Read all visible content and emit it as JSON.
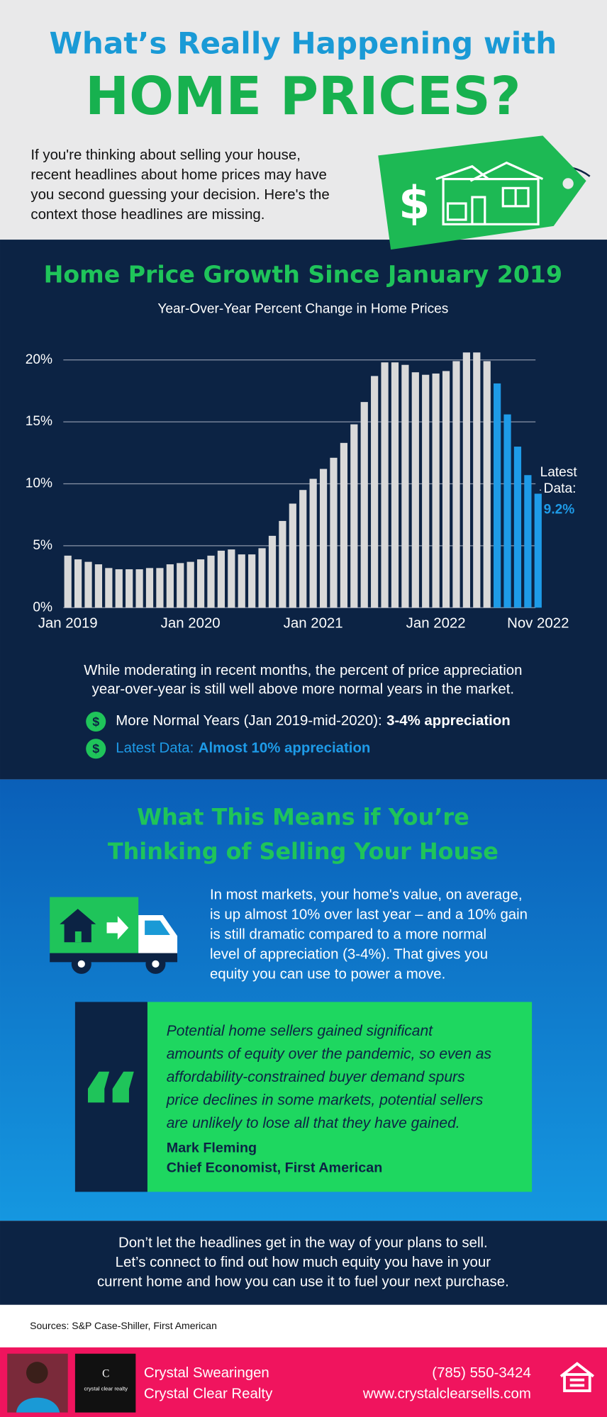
{
  "header": {
    "title_line1": "What’s Really Happening with",
    "title_line2": "HOME PRICES?",
    "intro": [
      "If you're thinking about selling your house,",
      "recent headlines about home prices may have",
      "you second guessing your decision. Here's the",
      "context those headlines are missing."
    ],
    "tag_symbol": "$"
  },
  "chart_data": {
    "type": "bar",
    "title": "Home Price Growth Since January 2019",
    "subtitle": "Year-Over-Year Percent Change in Home Prices",
    "categories": [
      "Jan 2019",
      null,
      null,
      null,
      null,
      null,
      null,
      null,
      null,
      null,
      null,
      null,
      "Jan 2020",
      null,
      null,
      null,
      null,
      null,
      null,
      null,
      null,
      null,
      null,
      null,
      "Jan 2021",
      null,
      null,
      null,
      null,
      null,
      null,
      null,
      null,
      null,
      null,
      null,
      "Jan 2022",
      null,
      null,
      null,
      null,
      null,
      null,
      null,
      null,
      null,
      "Nov 2022"
    ],
    "values": [
      4.2,
      3.9,
      3.7,
      3.5,
      3.2,
      3.1,
      3.1,
      3.1,
      3.2,
      3.2,
      3.5,
      3.6,
      3.7,
      3.9,
      4.2,
      4.6,
      4.7,
      4.3,
      4.3,
      4.8,
      5.8,
      7.0,
      8.4,
      9.5,
      10.4,
      11.2,
      12.1,
      13.3,
      14.8,
      16.6,
      18.7,
      19.8,
      19.8,
      19.6,
      19.0,
      18.8,
      18.9,
      19.1,
      19.9,
      20.6,
      20.6,
      19.9,
      18.1,
      15.6,
      13.0,
      10.7,
      9.2
    ],
    "colors": [
      "#d9d9d9",
      "#d9d9d9",
      "#d9d9d9",
      "#d9d9d9",
      "#d9d9d9",
      "#d9d9d9",
      "#d9d9d9",
      "#d9d9d9",
      "#d9d9d9",
      "#d9d9d9",
      "#d9d9d9",
      "#d9d9d9",
      "#d9d9d9",
      "#d9d9d9",
      "#d9d9d9",
      "#d9d9d9",
      "#d9d9d9",
      "#d9d9d9",
      "#d9d9d9",
      "#d9d9d9",
      "#d9d9d9",
      "#d9d9d9",
      "#d9d9d9",
      "#d9d9d9",
      "#d9d9d9",
      "#d9d9d9",
      "#d9d9d9",
      "#d9d9d9",
      "#d9d9d9",
      "#d9d9d9",
      "#d9d9d9",
      "#d9d9d9",
      "#d9d9d9",
      "#d9d9d9",
      "#d9d9d9",
      "#d9d9d9",
      "#d9d9d9",
      "#d9d9d9",
      "#d9d9d9",
      "#d9d9d9",
      "#d9d9d9",
      "#d9d9d9",
      "#1e9be8",
      "#1e9be8",
      "#1e9be8",
      "#1e9be8",
      "#1e9be8"
    ],
    "ylim": [
      0,
      21
    ],
    "yticks": [
      {
        "value": 0,
        "label": "0%"
      },
      {
        "value": 5,
        "label": "5%"
      },
      {
        "value": 10,
        "label": "10%"
      },
      {
        "value": 15,
        "label": "15%"
      },
      {
        "value": 20,
        "label": "20%"
      }
    ],
    "grid": true,
    "annotation": {
      "lines": [
        "Latest",
        "Data:"
      ],
      "label": "9.2%",
      "color": "#1e9be8"
    }
  },
  "summary": {
    "text": [
      "While moderating in recent months, the percent of price appreciation",
      "year-over-year is still well above more normal years in the market."
    ],
    "bullets": [
      {
        "icon": "$",
        "text": "More Normal Years (Jan 2019-mid-2020):",
        "emphasis": "3-4% appreciation"
      },
      {
        "icon": "$",
        "text": "Latest Data:",
        "emphasis": "Almost 10% appreciation"
      }
    ]
  },
  "selling": {
    "heading": [
      "What This Means if You’re",
      "Thinking of Selling Your House"
    ],
    "text": [
      "In most markets, your home's value, on average,",
      "is up almost 10% over last year – and a 10% gain",
      "is still dramatic compared to a more normal",
      "level of appreciation (3-4%). That gives you",
      "equity you can use to power a move."
    ],
    "quote": {
      "mark": "“",
      "text": [
        "Potential home sellers gained significant",
        "amounts of equity over the pandemic, so even as",
        "affordability-constrained buyer demand spurs",
        "price declines in some markets, potential sellers",
        "are unlikely to lose all that they have gained."
      ],
      "author": "Mark Fleming",
      "role": "Chief Economist, First American"
    }
  },
  "cta": [
    "Don’t let the headlines get in the way of your plans to sell.",
    "Let’s connect to find out how much equity you have in your",
    "current home and how you can use it to fuel your next purchase."
  ],
  "sources": "Sources: S&P Case-Shiller, First American",
  "footer": {
    "logo_initial": "C",
    "logo": "crystal clear realty",
    "name": "Crystal Swearingen",
    "company": "Crystal Clear Realty",
    "phone": "(785) 550-3424",
    "website": "www.crystalclearsells.com"
  }
}
